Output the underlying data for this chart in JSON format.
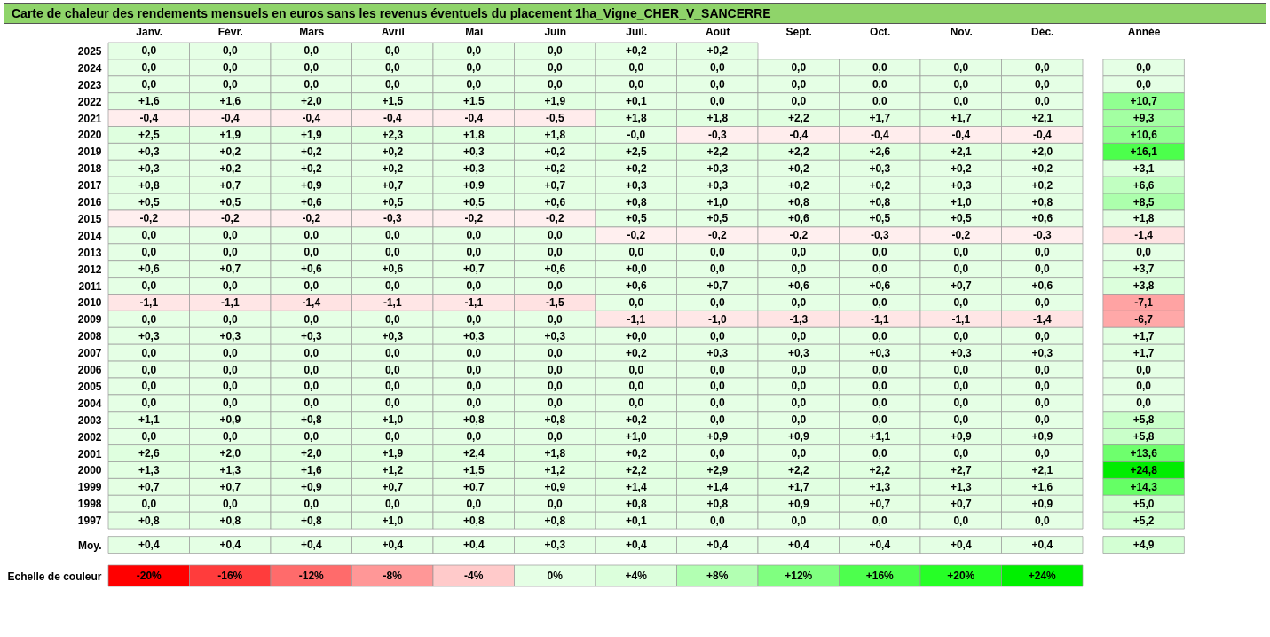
{
  "chart_data": [
    {
      "type": "heatmap",
      "title": "Carte de chaleur des rendements mensuels en euros sans les revenus éventuels du placement 1ha_Vigne_CHER_V_SANCERRE",
      "categories": [
        "Janv.",
        "Févr.",
        "Mars",
        "Avril",
        "Mai",
        "Juin",
        "Juil.",
        "Août",
        "Sept.",
        "Oct.",
        "Nov.",
        "Déc.",
        "Année"
      ],
      "y_categories": [
        "2025",
        "2024",
        "2023",
        "2022",
        "2021",
        "2020",
        "2019",
        "2018",
        "2017",
        "2016",
        "2015",
        "2014",
        "2013",
        "2012",
        "2011",
        "2010",
        "2009",
        "2008",
        "2007",
        "2006",
        "2005",
        "2004",
        "2003",
        "2002",
        "2001",
        "2000",
        "1999",
        "1998",
        "1997",
        "Moy."
      ],
      "cells": [
        [
          0,
          0,
          0,
          0,
          0,
          0,
          0.2,
          0.2,
          null,
          null,
          null,
          null,
          null
        ],
        [
          0,
          0,
          0,
          0,
          0,
          0,
          0,
          0,
          0,
          0,
          0,
          0,
          0
        ],
        [
          0,
          0,
          0,
          0,
          0,
          0,
          0,
          0,
          0,
          0,
          0,
          0,
          0
        ],
        [
          1.6,
          1.6,
          2.0,
          1.5,
          1.5,
          1.9,
          0.1,
          0,
          0,
          0,
          0,
          0,
          10.7
        ],
        [
          -0.4,
          -0.4,
          -0.4,
          -0.4,
          -0.4,
          -0.5,
          1.8,
          1.8,
          2.2,
          1.7,
          1.7,
          2.1,
          9.3
        ],
        [
          2.5,
          1.9,
          1.9,
          2.3,
          1.8,
          1.8,
          0,
          -0.3,
          -0.4,
          -0.4,
          -0.4,
          -0.4,
          10.6
        ],
        [
          0.3,
          0.2,
          0.2,
          0.2,
          0.3,
          0.2,
          2.5,
          2.2,
          2.2,
          2.6,
          2.1,
          2.0,
          16.1
        ],
        [
          0.3,
          0.2,
          0.2,
          0.2,
          0.3,
          0.2,
          0.2,
          0.3,
          0.2,
          0.3,
          0.2,
          0.2,
          3.1
        ],
        [
          0.8,
          0.7,
          0.9,
          0.7,
          0.9,
          0.7,
          0.3,
          0.3,
          0.2,
          0.2,
          0.3,
          0.2,
          6.6
        ],
        [
          0.5,
          0.5,
          0.6,
          0.5,
          0.5,
          0.6,
          0.8,
          1.0,
          0.8,
          0.8,
          1.0,
          0.8,
          8.5
        ],
        [
          -0.2,
          -0.2,
          -0.2,
          -0.3,
          -0.2,
          -0.2,
          0.5,
          0.5,
          0.6,
          0.5,
          0.5,
          0.6,
          1.8
        ],
        [
          0,
          0,
          0,
          0,
          0,
          0,
          -0.2,
          -0.2,
          -0.2,
          -0.3,
          -0.2,
          -0.3,
          -1.4
        ],
        [
          0,
          0,
          0,
          0,
          0,
          0,
          0,
          0,
          0,
          0,
          0,
          0,
          0
        ],
        [
          0.6,
          0.7,
          0.6,
          0.6,
          0.7,
          0.6,
          0,
          0,
          0,
          0,
          0,
          0,
          3.7
        ],
        [
          0,
          0,
          0,
          0,
          0,
          0,
          0.6,
          0.7,
          0.6,
          0.6,
          0.7,
          0.6,
          3.8
        ],
        [
          -1.1,
          -1.1,
          -1.4,
          -1.1,
          -1.1,
          -1.5,
          0,
          0,
          0,
          0,
          0,
          0,
          -7.1
        ],
        [
          0,
          0,
          0,
          0,
          0,
          0,
          -1.1,
          -1.0,
          -1.3,
          -1.1,
          -1.1,
          -1.4,
          -6.7
        ],
        [
          0.3,
          0.3,
          0.3,
          0.3,
          0.3,
          0.3,
          0,
          0,
          0,
          0,
          0,
          0,
          1.7
        ],
        [
          0,
          0,
          0,
          0,
          0,
          0,
          0.2,
          0.3,
          0.3,
          0.3,
          0.3,
          0.3,
          1.7
        ],
        [
          0,
          0,
          0,
          0,
          0,
          0,
          0,
          0,
          0,
          0,
          0,
          0,
          0
        ],
        [
          0,
          0,
          0,
          0,
          0,
          0,
          0,
          0,
          0,
          0,
          0,
          0,
          0
        ],
        [
          0,
          0,
          0,
          0,
          0,
          0,
          0,
          0,
          0,
          0,
          0,
          0,
          0
        ],
        [
          1.1,
          0.9,
          0.8,
          1.0,
          0.8,
          0.8,
          0.2,
          0,
          0,
          0,
          0,
          0,
          5.8
        ],
        [
          0,
          0,
          0,
          0,
          0,
          0,
          1.0,
          0.9,
          0.9,
          1.1,
          0.9,
          0.9,
          5.8
        ],
        [
          2.6,
          2.0,
          2.0,
          1.9,
          2.4,
          1.8,
          0.2,
          0,
          0,
          0,
          0,
          0,
          13.6
        ],
        [
          1.3,
          1.3,
          1.6,
          1.2,
          1.5,
          1.2,
          2.2,
          2.9,
          2.2,
          2.2,
          2.7,
          2.1,
          24.8
        ],
        [
          0.7,
          0.7,
          0.9,
          0.7,
          0.7,
          0.9,
          1.4,
          1.4,
          1.7,
          1.3,
          1.3,
          1.6,
          14.3
        ],
        [
          0,
          0,
          0,
          0,
          0,
          0,
          0.8,
          0.8,
          0.9,
          0.7,
          0.7,
          0.9,
          5.0
        ],
        [
          0.8,
          0.8,
          0.8,
          1.0,
          0.8,
          0.8,
          0.1,
          0,
          0,
          0,
          0,
          0,
          5.2
        ],
        [
          0.4,
          0.4,
          0.4,
          0.4,
          0.4,
          0.3,
          0.4,
          0.4,
          0.4,
          0.4,
          0.4,
          0.4,
          4.9
        ]
      ],
      "cell_labels": [
        [
          "0,0",
          "0,0",
          "0,0",
          "0,0",
          "0,0",
          "0,0",
          "+0,2",
          "+0,2",
          null,
          null,
          null,
          null,
          null
        ],
        [
          "0,0",
          "0,0",
          "0,0",
          "0,0",
          "0,0",
          "0,0",
          "0,0",
          "0,0",
          "0,0",
          "0,0",
          "0,0",
          "0,0",
          "0,0"
        ],
        [
          "0,0",
          "0,0",
          "0,0",
          "0,0",
          "0,0",
          "0,0",
          "0,0",
          "0,0",
          "0,0",
          "0,0",
          "0,0",
          "0,0",
          "0,0"
        ],
        [
          "+1,6",
          "+1,6",
          "+2,0",
          "+1,5",
          "+1,5",
          "+1,9",
          "+0,1",
          "0,0",
          "0,0",
          "0,0",
          "0,0",
          "0,0",
          "+10,7"
        ],
        [
          "-0,4",
          "-0,4",
          "-0,4",
          "-0,4",
          "-0,4",
          "-0,5",
          "+1,8",
          "+1,8",
          "+2,2",
          "+1,7",
          "+1,7",
          "+2,1",
          "+9,3"
        ],
        [
          "+2,5",
          "+1,9",
          "+1,9",
          "+2,3",
          "+1,8",
          "+1,8",
          "-0,0",
          "-0,3",
          "-0,4",
          "-0,4",
          "-0,4",
          "-0,4",
          "+10,6"
        ],
        [
          "+0,3",
          "+0,2",
          "+0,2",
          "+0,2",
          "+0,3",
          "+0,2",
          "+2,5",
          "+2,2",
          "+2,2",
          "+2,6",
          "+2,1",
          "+2,0",
          "+16,1"
        ],
        [
          "+0,3",
          "+0,2",
          "+0,2",
          "+0,2",
          "+0,3",
          "+0,2",
          "+0,2",
          "+0,3",
          "+0,2",
          "+0,3",
          "+0,2",
          "+0,2",
          "+3,1"
        ],
        [
          "+0,8",
          "+0,7",
          "+0,9",
          "+0,7",
          "+0,9",
          "+0,7",
          "+0,3",
          "+0,3",
          "+0,2",
          "+0,2",
          "+0,3",
          "+0,2",
          "+6,6"
        ],
        [
          "+0,5",
          "+0,5",
          "+0,6",
          "+0,5",
          "+0,5",
          "+0,6",
          "+0,8",
          "+1,0",
          "+0,8",
          "+0,8",
          "+1,0",
          "+0,8",
          "+8,5"
        ],
        [
          "-0,2",
          "-0,2",
          "-0,2",
          "-0,3",
          "-0,2",
          "-0,2",
          "+0,5",
          "+0,5",
          "+0,6",
          "+0,5",
          "+0,5",
          "+0,6",
          "+1,8"
        ],
        [
          "0,0",
          "0,0",
          "0,0",
          "0,0",
          "0,0",
          "0,0",
          "-0,2",
          "-0,2",
          "-0,2",
          "-0,3",
          "-0,2",
          "-0,3",
          "-1,4"
        ],
        [
          "0,0",
          "0,0",
          "0,0",
          "0,0",
          "0,0",
          "0,0",
          "0,0",
          "0,0",
          "0,0",
          "0,0",
          "0,0",
          "0,0",
          "0,0"
        ],
        [
          "+0,6",
          "+0,7",
          "+0,6",
          "+0,6",
          "+0,7",
          "+0,6",
          "+0,0",
          "0,0",
          "0,0",
          "0,0",
          "0,0",
          "0,0",
          "+3,7"
        ],
        [
          "0,0",
          "0,0",
          "0,0",
          "0,0",
          "0,0",
          "0,0",
          "+0,6",
          "+0,7",
          "+0,6",
          "+0,6",
          "+0,7",
          "+0,6",
          "+3,8"
        ],
        [
          "-1,1",
          "-1,1",
          "-1,4",
          "-1,1",
          "-1,1",
          "-1,5",
          "0,0",
          "0,0",
          "0,0",
          "0,0",
          "0,0",
          "0,0",
          "-7,1"
        ],
        [
          "0,0",
          "0,0",
          "0,0",
          "0,0",
          "0,0",
          "0,0",
          "-1,1",
          "-1,0",
          "-1,3",
          "-1,1",
          "-1,1",
          "-1,4",
          "-6,7"
        ],
        [
          "+0,3",
          "+0,3",
          "+0,3",
          "+0,3",
          "+0,3",
          "+0,3",
          "+0,0",
          "0,0",
          "0,0",
          "0,0",
          "0,0",
          "0,0",
          "+1,7"
        ],
        [
          "0,0",
          "0,0",
          "0,0",
          "0,0",
          "0,0",
          "0,0",
          "+0,2",
          "+0,3",
          "+0,3",
          "+0,3",
          "+0,3",
          "+0,3",
          "+1,7"
        ],
        [
          "0,0",
          "0,0",
          "0,0",
          "0,0",
          "0,0",
          "0,0",
          "0,0",
          "0,0",
          "0,0",
          "0,0",
          "0,0",
          "0,0",
          "0,0"
        ],
        [
          "0,0",
          "0,0",
          "0,0",
          "0,0",
          "0,0",
          "0,0",
          "0,0",
          "0,0",
          "0,0",
          "0,0",
          "0,0",
          "0,0",
          "0,0"
        ],
        [
          "0,0",
          "0,0",
          "0,0",
          "0,0",
          "0,0",
          "0,0",
          "0,0",
          "0,0",
          "0,0",
          "0,0",
          "0,0",
          "0,0",
          "0,0"
        ],
        [
          "+1,1",
          "+0,9",
          "+0,8",
          "+1,0",
          "+0,8",
          "+0,8",
          "+0,2",
          "0,0",
          "0,0",
          "0,0",
          "0,0",
          "0,0",
          "+5,8"
        ],
        [
          "0,0",
          "0,0",
          "0,0",
          "0,0",
          "0,0",
          "0,0",
          "+1,0",
          "+0,9",
          "+0,9",
          "+1,1",
          "+0,9",
          "+0,9",
          "+5,8"
        ],
        [
          "+2,6",
          "+2,0",
          "+2,0",
          "+1,9",
          "+2,4",
          "+1,8",
          "+0,2",
          "0,0",
          "0,0",
          "0,0",
          "0,0",
          "0,0",
          "+13,6"
        ],
        [
          "+1,3",
          "+1,3",
          "+1,6",
          "+1,2",
          "+1,5",
          "+1,2",
          "+2,2",
          "+2,9",
          "+2,2",
          "+2,2",
          "+2,7",
          "+2,1",
          "+24,8"
        ],
        [
          "+0,7",
          "+0,7",
          "+0,9",
          "+0,7",
          "+0,7",
          "+0,9",
          "+1,4",
          "+1,4",
          "+1,7",
          "+1,3",
          "+1,3",
          "+1,6",
          "+14,3"
        ],
        [
          "0,0",
          "0,0",
          "0,0",
          "0,0",
          "0,0",
          "0,0",
          "+0,8",
          "+0,8",
          "+0,9",
          "+0,7",
          "+0,7",
          "+0,9",
          "+5,0"
        ],
        [
          "+0,8",
          "+0,8",
          "+0,8",
          "+1,0",
          "+0,8",
          "+0,8",
          "+0,1",
          "0,0",
          "0,0",
          "0,0",
          "0,0",
          "0,0",
          "+5,2"
        ],
        [
          "+0,4",
          "+0,4",
          "+0,4",
          "+0,4",
          "+0,4",
          "+0,3",
          "+0,4",
          "+0,4",
          "+0,4",
          "+0,4",
          "+0,4",
          "+0,4",
          "+4,9"
        ]
      ]
    },
    {
      "type": "heatmap",
      "categories": [
        null,
        null,
        null,
        null,
        null,
        null,
        null,
        null,
        null,
        null,
        null,
        null
      ],
      "y_categories": [
        "Echelle de couleur"
      ],
      "cells": [
        [
          -20,
          -16,
          -12,
          -8,
          -4,
          0,
          4,
          8,
          12,
          16,
          20,
          24
        ]
      ],
      "cell_labels": [
        [
          "-20%",
          "-16%",
          "-12%",
          "-8%",
          "-4%",
          "0%",
          "+4%",
          "+8%",
          "+12%",
          "+16%",
          "+20%",
          "+24%"
        ]
      ],
      "colors": [
        "#ff0000",
        "#ff3c3c",
        "#ff6b6b",
        "#ff9797",
        "#ffcaca",
        "#ffffff",
        "#dcffdc",
        "#b2ffb2",
        "#80ff80",
        "#4dff4d",
        "#26ff26",
        "#00f000"
      ],
      "tick_labels": "y"
    }
  ]
}
